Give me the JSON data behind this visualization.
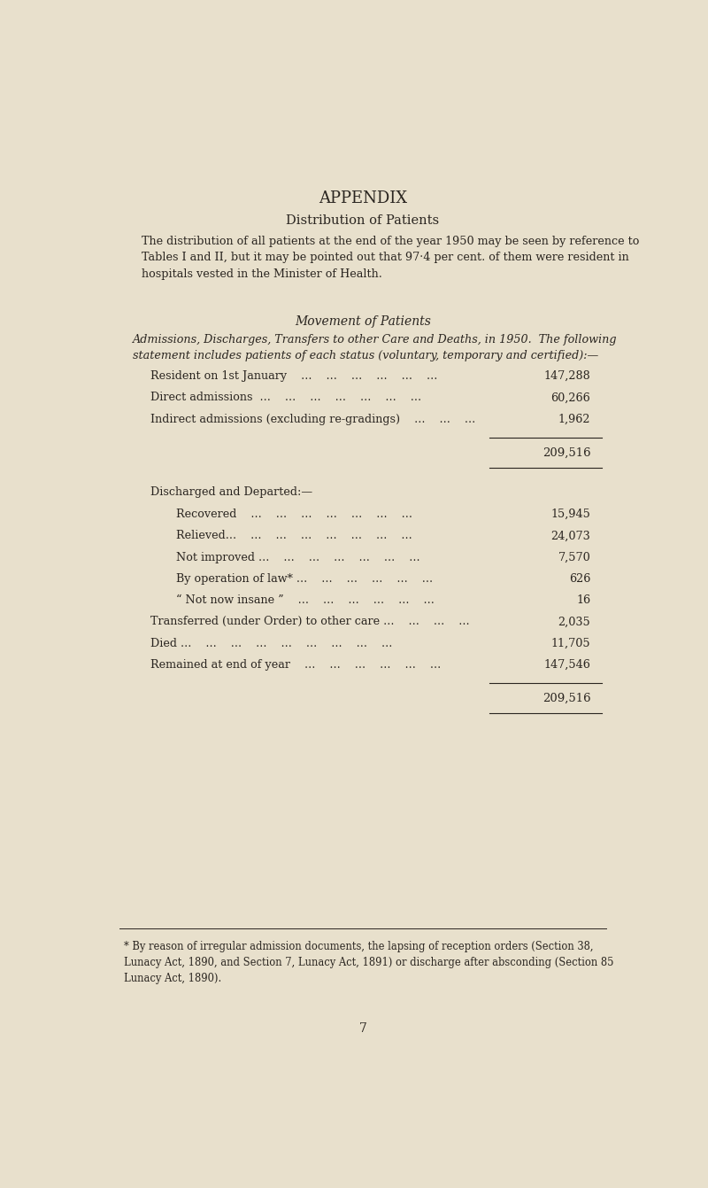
{
  "bg_color": "#e8e0cc",
  "text_color": "#2a2520",
  "page_width": 8.0,
  "page_height": 13.41,
  "title": "APPENDIX",
  "section_heading": "Distribution of Patients",
  "para1": "The distribution of all patients at the end of the year 1950 may be seen by reference to\nTables I and II, but it may be pointed out that 97·4 per cent. of them were resident in\nhospitals vested in the Minister of Health.",
  "movement_heading": "Movement of Patients",
  "movement_subheading": "Admissions, Discharges, Transfers to other Care and Deaths, in 1950.  The following\nstatement includes patients of each status (voluntary, temporary and certified):—",
  "admissions_rows": [
    {
      "label": "Resident on 1st January    ...    ...    ...    ...    ...    ...",
      "value": "147,288",
      "indent": 0
    },
    {
      "label": "Direct admissions  ...    ...    ...    ...    ...    ...    ...",
      "value": "60,266",
      "indent": 0
    },
    {
      "label": "Indirect admissions (excluding re-gradings)    ...    ...    ...",
      "value": "1,962",
      "indent": 0
    }
  ],
  "admissions_total": "209,516",
  "discharged_heading": "Discharged and Departed:—",
  "discharged_rows": [
    {
      "label": "Recovered    ...    ...    ...    ...    ...    ...    ...",
      "value": "15,945",
      "indent": 1
    },
    {
      "label": "Relieved...    ...    ...    ...    ...    ...    ...    ...",
      "value": "24,073",
      "indent": 1
    },
    {
      "label": "Not improved ...    ...    ...    ...    ...    ...    ...",
      "value": "7,570",
      "indent": 1
    },
    {
      "label": "By operation of law* ...    ...    ...    ...    ...    ...",
      "value": "626",
      "indent": 1
    },
    {
      "“ Not now insane ”    ...    ...    ...    ...    ...    ...": "“ Not now insane ”    ...    ...    ...    ...    ...    ...",
      "label": "“ Not now insane ”    ...    ...    ...    ...    ...    ...",
      "value": "16",
      "indent": 1
    },
    {
      "label": "Transferred (under Order) to other care ...    ...    ...    ...",
      "value": "2,035",
      "indent": 0
    },
    {
      "label": "Died ...    ...    ...    ...    ...    ...    ...    ...    ...",
      "value": "11,705",
      "indent": 0
    },
    {
      "label": "Remained at end of year    ...    ...    ...    ...    ...    ...",
      "value": "147,546",
      "indent": 0
    }
  ],
  "discharged_total": "209,516",
  "footnote": "* By reason of irregular admission documents, the lapsing of reception orders (Section 38,\nLunacy Act, 1890, and Section 7, Lunacy Act, 1891) or discharge after absconding (Section 85\nLunacy Act, 1890).",
  "page_number": "7"
}
